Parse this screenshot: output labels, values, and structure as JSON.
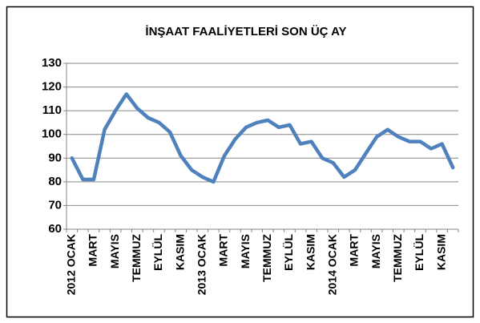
{
  "chart_data": {
    "type": "line",
    "title": "İNŞAAT FAALİYETLERİ SON ÜÇ AY",
    "categories": [
      "2012 OCAK",
      null,
      "MART",
      null,
      "MAYIS",
      null,
      "TEMMUZ",
      null,
      "EYLÜL",
      null,
      "KASIM",
      null,
      "2013 OCAK",
      null,
      "MART",
      null,
      "MAYIS",
      null,
      "TEMMUZ",
      null,
      "EYLÜL",
      null,
      "KASIM",
      null,
      "2014 OCAK",
      null,
      "MART",
      null,
      "MAYIS",
      null,
      "TEMMUZ",
      null,
      "EYLÜL",
      null,
      "KASIM",
      null
    ],
    "values": [
      90,
      81,
      81,
      102,
      110,
      117,
      111,
      107,
      105,
      101,
      91,
      85,
      82,
      80,
      91,
      98,
      103,
      105,
      106,
      103,
      104,
      96,
      97,
      90,
      88,
      82,
      85,
      92,
      99,
      102,
      99,
      97,
      97,
      94,
      96,
      86
    ],
    "color": "#4f81bd",
    "ylim": [
      60,
      130
    ],
    "yticks": [
      60,
      70,
      80,
      90,
      100,
      110,
      120,
      130
    ],
    "grid": true
  }
}
